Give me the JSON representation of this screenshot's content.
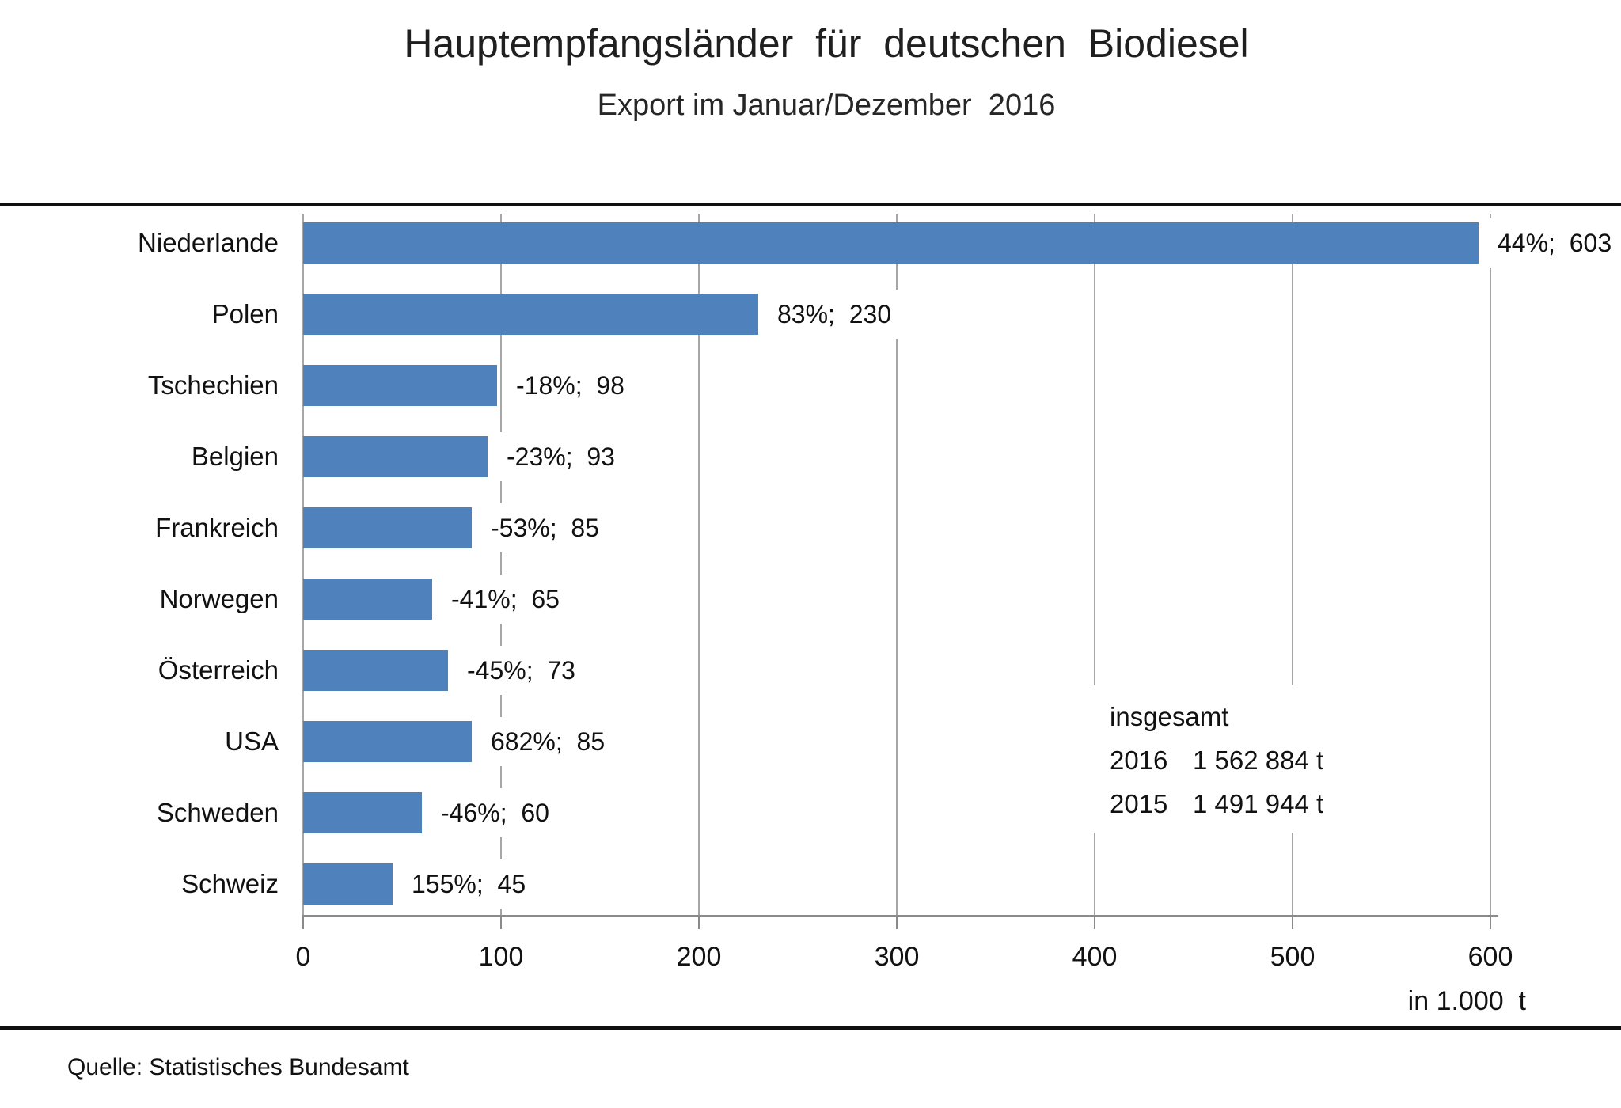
{
  "colors": {
    "bar": "#4f81bd",
    "gridline": "#a6a6a6",
    "axis_line": "#8a8a8a",
    "rule": "#101010",
    "text": "#111111"
  },
  "header": {
    "title": "Hauptempfangsländer  für  deutschen  Biodiesel",
    "subtitle": "Export im Januar/Dezember  2016"
  },
  "footer": {
    "source": "Quelle: Statistisches Bundesamt"
  },
  "annotation": {
    "title": "insgesamt",
    "rows": [
      {
        "year": "2016",
        "value": "1 562 884 t"
      },
      {
        "year": "2015",
        "value": "1 491 944 t"
      }
    ]
  },
  "chart_data": {
    "type": "bar",
    "orientation": "horizontal",
    "title": "Hauptempfangsländer für deutschen Biodiesel",
    "subtitle": "Export im Januar/Dezember 2016",
    "xlabel": "in 1.000 t",
    "unit_label": "in 1.000  t",
    "categories": [
      "Niederlande",
      "Polen",
      "Tschechien",
      "Belgien",
      "Frankreich",
      "Norwegen",
      "Österreich",
      "USA",
      "Schweden",
      "Schweiz"
    ],
    "values": [
      603,
      230,
      98,
      93,
      85,
      65,
      73,
      85,
      60,
      45
    ],
    "change_vs_prev_year_pct": [
      44,
      83,
      -18,
      -23,
      -53,
      -41,
      -45,
      682,
      -46,
      155
    ],
    "data_labels": [
      "44%;  603",
      "83%;  230",
      "-18%;  98",
      "-23%;  93",
      "-53%;  85",
      "-41%;  65",
      "-45%;  73",
      "682%;  85",
      "-46%;  60",
      "155%;  45"
    ],
    "xlim": [
      0,
      600
    ],
    "xticks": [
      0,
      100,
      200,
      300,
      400,
      500,
      600
    ],
    "grid": "vertical",
    "legend": "none",
    "totals_annotation": {
      "title": "insgesamt",
      "total_2016": "1 562 884 t",
      "total_2015": "1 491 944 t"
    }
  }
}
